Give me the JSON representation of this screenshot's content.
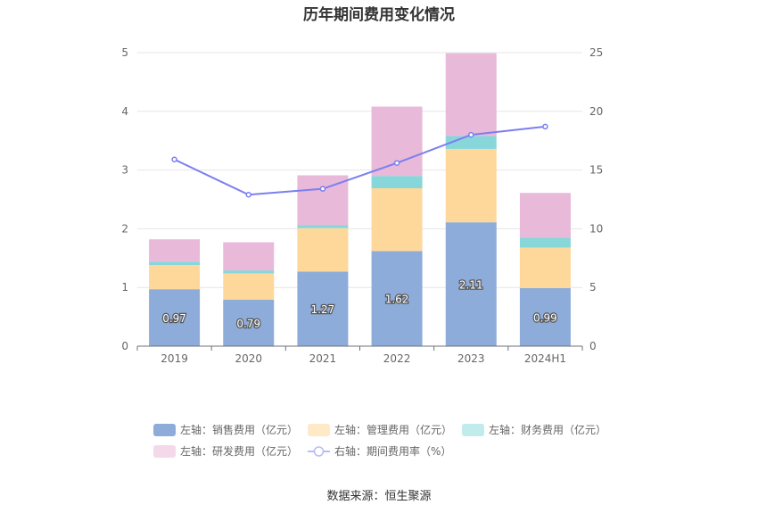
{
  "chart_data": {
    "type": "bar",
    "title": "历年期间费用变化情况",
    "categories": [
      "2019",
      "2020",
      "2021",
      "2022",
      "2023",
      "2024H1"
    ],
    "series": [
      {
        "name": "左轴：销售费用（亿元）",
        "kind": "bar",
        "axis": "left",
        "color": "#8eacd9",
        "values": [
          0.97,
          0.79,
          1.27,
          1.62,
          2.11,
          0.99
        ],
        "show_labels": true
      },
      {
        "name": "左轴：管理费用（亿元）",
        "kind": "bar",
        "axis": "left",
        "color": "#fdd89a",
        "values": [
          0.41,
          0.45,
          0.74,
          1.07,
          1.25,
          0.69
        ],
        "show_labels": false
      },
      {
        "name": "左轴：财务费用（亿元）",
        "kind": "bar",
        "axis": "left",
        "color": "#87d6d9",
        "values": [
          0.06,
          0.05,
          0.05,
          0.21,
          0.22,
          0.17
        ],
        "show_labels": false
      },
      {
        "name": "左轴：研发费用（亿元）",
        "kind": "bar",
        "axis": "left",
        "color": "#e8b9d9",
        "values": [
          0.38,
          0.48,
          0.85,
          1.18,
          1.41,
          0.76
        ],
        "show_labels": false
      },
      {
        "name": "右轴：期间费用率（%）",
        "kind": "line",
        "axis": "right",
        "color": "#7b7ff0",
        "values": [
          15.9,
          12.9,
          13.4,
          15.6,
          18.0,
          18.7
        ],
        "show_labels": false
      }
    ],
    "y_left": {
      "min": 0,
      "max": 5,
      "ticks": [
        0,
        1,
        2,
        3,
        4,
        5
      ]
    },
    "y_right": {
      "min": 0,
      "max": 25,
      "ticks": [
        0,
        5,
        10,
        15,
        20,
        25
      ]
    },
    "grid": true,
    "legend_position": "bottom",
    "legend_bg_colors": [
      "#8eacd9",
      "#ffe9c7",
      "#c2ebec",
      "#f3d9ea",
      "#b9bbf6"
    ]
  },
  "footer": {
    "source": "数据来源：恒生聚源"
  }
}
